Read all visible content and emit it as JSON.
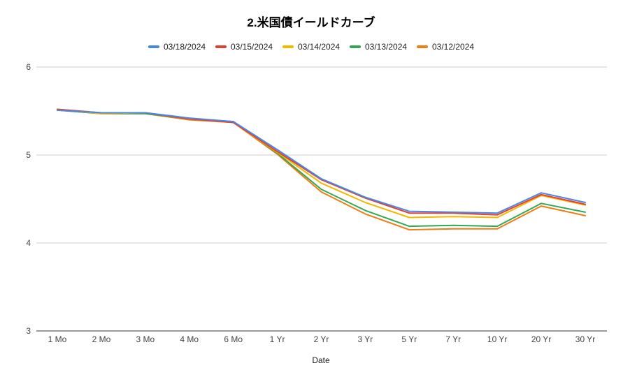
{
  "chart_data": {
    "type": "line",
    "title": "2.米国債イールドカーブ",
    "xlabel": "Date",
    "ylabel": "",
    "categories": [
      "1 Mo",
      "2 Mo",
      "3 Mo",
      "4 Mo",
      "6 Mo",
      "1 Yr",
      "2 Yr",
      "3 Yr",
      "5 Yr",
      "7 Yr",
      "10 Yr",
      "20 Yr",
      "30 Yr"
    ],
    "ylim": [
      3,
      6
    ],
    "yticks": [
      "3",
      "4",
      "5",
      "6"
    ],
    "grid": true,
    "legend_position": "top-center",
    "series": [
      {
        "name": "03/18/2024",
        "color": "#4a86e8",
        "values": [
          5.51,
          5.48,
          5.48,
          5.42,
          5.38,
          5.06,
          4.73,
          4.52,
          4.36,
          4.35,
          4.34,
          4.57,
          4.46
        ]
      },
      {
        "name": "03/15/2024",
        "color": "#e2412f",
        "values": [
          5.52,
          5.48,
          5.48,
          5.41,
          5.37,
          5.04,
          4.72,
          4.51,
          4.34,
          4.34,
          4.32,
          4.55,
          4.44
        ]
      },
      {
        "name": "03/14/2024",
        "color": "#f5b800",
        "values": [
          5.52,
          5.47,
          5.48,
          5.41,
          5.37,
          5.03,
          4.68,
          4.46,
          4.29,
          4.3,
          4.29,
          4.54,
          4.43
        ]
      },
      {
        "name": "03/13/2024",
        "color": "#33a853",
        "values": [
          5.51,
          5.47,
          5.47,
          5.41,
          5.38,
          5.02,
          4.61,
          4.37,
          4.19,
          4.2,
          4.19,
          4.45,
          4.35
        ]
      },
      {
        "name": "03/12/2024",
        "color": "#f07c13",
        "values": [
          5.51,
          5.47,
          5.47,
          5.4,
          5.37,
          5.01,
          4.58,
          4.33,
          4.15,
          4.16,
          4.16,
          4.42,
          4.31
        ]
      }
    ]
  }
}
